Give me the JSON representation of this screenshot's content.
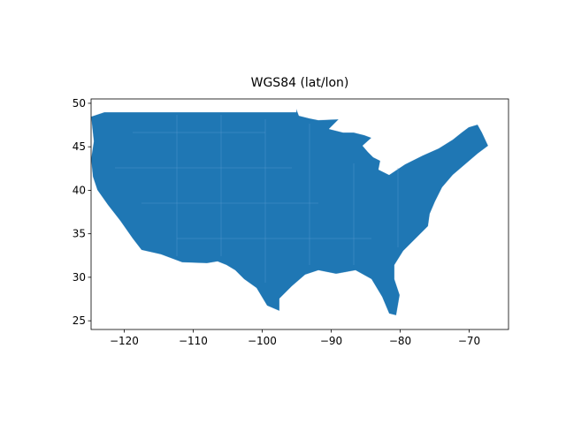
{
  "chart_data": {
    "type": "map",
    "title": "WGS84 (lat/lon)",
    "xlim": [
      -124.8,
      -64.3
    ],
    "ylim": [
      24.0,
      50.5
    ],
    "xticks": [
      {
        "value": -120,
        "label": "−120"
      },
      {
        "value": -110,
        "label": "−110"
      },
      {
        "value": -100,
        "label": "−100"
      },
      {
        "value": -90,
        "label": "−90"
      },
      {
        "value": -80,
        "label": "−80"
      },
      {
        "value": -70,
        "label": "−70"
      }
    ],
    "yticks": [
      25,
      30,
      35,
      40,
      45,
      50
    ],
    "color": "#1f77b4"
  }
}
